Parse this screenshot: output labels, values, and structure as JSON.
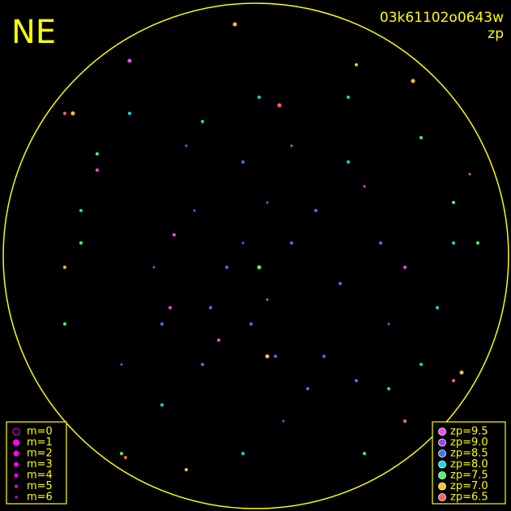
{
  "chart_data": {
    "type": "scatter",
    "corner_label": "NE",
    "title": "03k61102o0643w",
    "subtitle": "zp",
    "size_legend": [
      "m=0",
      "m=1",
      "m=2",
      "m=3",
      "m=4",
      "m=5",
      "m=6"
    ],
    "size_legend_values": [
      0,
      1,
      2,
      3,
      4,
      5,
      6
    ],
    "size_legend_color": "#ff00ff",
    "frame_color": "#ffff00",
    "series": [
      {
        "name": "zp=9.5",
        "color": "#ff40ff",
        "x": [
          160,
          215,
          330,
          270,
          450,
          120,
          360,
          500,
          580,
          210
        ],
        "y": [
          75,
          290,
          370,
          420,
          230,
          210,
          180,
          330,
          215,
          380
        ],
        "m": [
          3,
          4,
          5,
          4,
          5,
          4,
          5,
          4,
          5,
          4
        ]
      },
      {
        "name": "zp=9.0",
        "color": "#a040ff",
        "x": [
          300,
          240,
          400,
          330,
          190,
          480,
          350,
          150
        ],
        "y": [
          300,
          260,
          440,
          250,
          330,
          400,
          520,
          450
        ],
        "m": [
          5,
          5,
          4,
          5,
          5,
          5,
          5,
          5
        ]
      },
      {
        "name": "zp=8.5",
        "color": "#3c78ff",
        "x": [
          280,
          310,
          360,
          420,
          250,
          380,
          300,
          200,
          440,
          340,
          260,
          390,
          230,
          470
        ],
        "y": [
          330,
          400,
          300,
          350,
          450,
          480,
          200,
          400,
          470,
          440,
          380,
          260,
          180,
          300
        ],
        "m": [
          4,
          4,
          4,
          4,
          4,
          4,
          4,
          4,
          4,
          4,
          4,
          4,
          5,
          4
        ]
      },
      {
        "name": "zp=8.0",
        "color": "#00e0e0",
        "x": [
          250,
          320,
          430,
          480,
          520,
          100,
          160,
          540,
          430,
          200,
          560,
          300
        ],
        "y": [
          150,
          120,
          120,
          480,
          450,
          260,
          140,
          380,
          200,
          500,
          300,
          560
        ],
        "m": [
          4,
          4,
          4,
          4,
          4,
          4,
          4,
          4,
          4,
          4,
          4,
          4
        ]
      },
      {
        "name": "zp=7.5",
        "color": "#40ff60",
        "x": [
          320,
          100,
          500,
          150,
          560,
          80,
          450,
          520,
          120,
          590
        ],
        "y": [
          330,
          300,
          520,
          560,
          250,
          400,
          560,
          170,
          190,
          300
        ],
        "m": [
          3,
          4,
          4,
          4,
          4,
          4,
          4,
          4,
          4,
          4
        ]
      },
      {
        "name": "zp=7.0",
        "color": "#ffc020",
        "x": [
          570,
          330,
          290,
          230,
          510,
          90,
          80,
          440
        ],
        "y": [
          460,
          440,
          30,
          580,
          100,
          140,
          330,
          80
        ],
        "m": [
          3,
          3,
          3,
          4,
          3,
          3,
          4,
          4
        ]
      },
      {
        "name": "zp=6.5",
        "color": "#ff6060",
        "x": [
          345,
          80,
          560,
          500,
          155
        ],
        "y": [
          130,
          140,
          470,
          520,
          565
        ],
        "m": [
          3,
          4,
          4,
          4,
          4
        ]
      }
    ]
  }
}
